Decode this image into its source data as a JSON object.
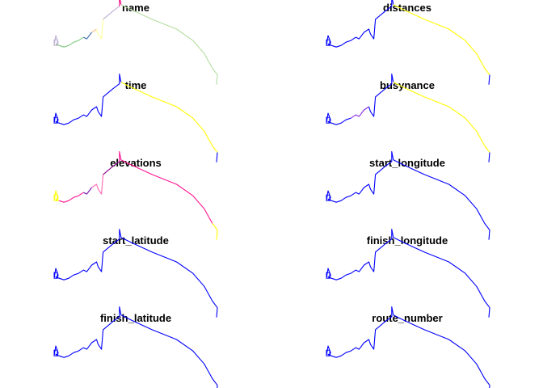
{
  "chart_data": {
    "type": "line",
    "description_free": true,
    "grid": false,
    "legend": "none",
    "layout": "5 rows x 2 columns of small-multiple route maps",
    "route_points": [
      [
        0.0,
        0.1
      ],
      [
        0.01,
        0.04
      ],
      [
        0.025,
        0.08
      ],
      [
        0.02,
        0.1
      ],
      [
        0.01,
        0.09
      ],
      [
        0.03,
        0.1
      ],
      [
        0.06,
        0.11
      ],
      [
        0.09,
        0.1
      ],
      [
        0.12,
        0.08
      ],
      [
        0.15,
        0.07
      ],
      [
        0.18,
        0.05
      ],
      [
        0.2,
        0.06
      ],
      [
        0.23,
        0.02
      ],
      [
        0.26,
        0.0
      ],
      [
        0.27,
        0.03
      ],
      [
        0.29,
        0.06
      ],
      [
        0.3,
        -0.06
      ],
      [
        0.36,
        -0.11
      ],
      [
        0.4,
        -0.14
      ],
      [
        0.4,
        -0.2
      ],
      [
        0.41,
        -0.15
      ],
      [
        0.47,
        -0.12
      ],
      [
        0.6,
        -0.06
      ],
      [
        0.75,
        0.0
      ],
      [
        0.85,
        0.07
      ],
      [
        0.92,
        0.15
      ],
      [
        0.97,
        0.24
      ],
      [
        1.0,
        0.28
      ],
      [
        0.995,
        0.34
      ]
    ],
    "panels": [
      {
        "title": "name",
        "segments": [
          {
            "from": 0,
            "to": 4,
            "color": "#BEAED4"
          },
          {
            "from": 4,
            "to": 10,
            "color": "#7FC97F"
          },
          {
            "from": 10,
            "to": 12,
            "color": "#386CB0"
          },
          {
            "from": 12,
            "to": 13,
            "color": "#FDC086"
          },
          {
            "from": 13,
            "to": 16,
            "color": "#FFFF99"
          },
          {
            "from": 16,
            "to": 18,
            "color": "#BEAED4"
          },
          {
            "from": 18,
            "to": 20,
            "color": "#F0027F"
          },
          {
            "from": 20,
            "to": 28,
            "color": "#B3DE9F"
          }
        ]
      },
      {
        "title": "distances",
        "segments": [
          {
            "from": 0,
            "to": 20,
            "color": "#0000FF"
          },
          {
            "from": 20,
            "to": 27,
            "color": "#FFFF00"
          },
          {
            "from": 27,
            "to": 28,
            "color": "#0000FF"
          }
        ]
      },
      {
        "title": "time",
        "segments": [
          {
            "from": 0,
            "to": 20,
            "color": "#0000FF"
          },
          {
            "from": 20,
            "to": 27,
            "color": "#FFFF00"
          },
          {
            "from": 27,
            "to": 28,
            "color": "#0000FF"
          }
        ]
      },
      {
        "title": "busynance",
        "segments": [
          {
            "from": 0,
            "to": 9,
            "color": "#0000FF"
          },
          {
            "from": 9,
            "to": 13,
            "color": "#8A2BE2"
          },
          {
            "from": 13,
            "to": 20,
            "color": "#0000FF"
          },
          {
            "from": 20,
            "to": 27,
            "color": "#FFFF00"
          },
          {
            "from": 27,
            "to": 28,
            "color": "#0000FF"
          }
        ]
      },
      {
        "title": "elevations",
        "segments": [
          {
            "from": 0,
            "to": 5,
            "color": "#FFFF00"
          },
          {
            "from": 5,
            "to": 10,
            "color": "#FF1493"
          },
          {
            "from": 10,
            "to": 12,
            "color": "#6A0DAD"
          },
          {
            "from": 12,
            "to": 16,
            "color": "#FF69B4"
          },
          {
            "from": 16,
            "to": 18,
            "color": "#8B008B"
          },
          {
            "from": 18,
            "to": 26,
            "color": "#FF1493"
          },
          {
            "from": 26,
            "to": 28,
            "color": "#FFFF00"
          }
        ]
      },
      {
        "title": "start_longitude",
        "segments": [
          {
            "from": 0,
            "to": 28,
            "color": "#0000FF"
          }
        ]
      },
      {
        "title": "start_latitude",
        "segments": [
          {
            "from": 0,
            "to": 28,
            "color": "#0000FF"
          }
        ]
      },
      {
        "title": "finish_longitude",
        "segments": [
          {
            "from": 0,
            "to": 28,
            "color": "#0000FF"
          }
        ]
      },
      {
        "title": "finish_latitude",
        "segments": [
          {
            "from": 0,
            "to": 28,
            "color": "#0000FF"
          }
        ]
      },
      {
        "title": "route_number",
        "segments": [
          {
            "from": 0,
            "to": 28,
            "color": "#0000FF"
          }
        ]
      }
    ]
  }
}
